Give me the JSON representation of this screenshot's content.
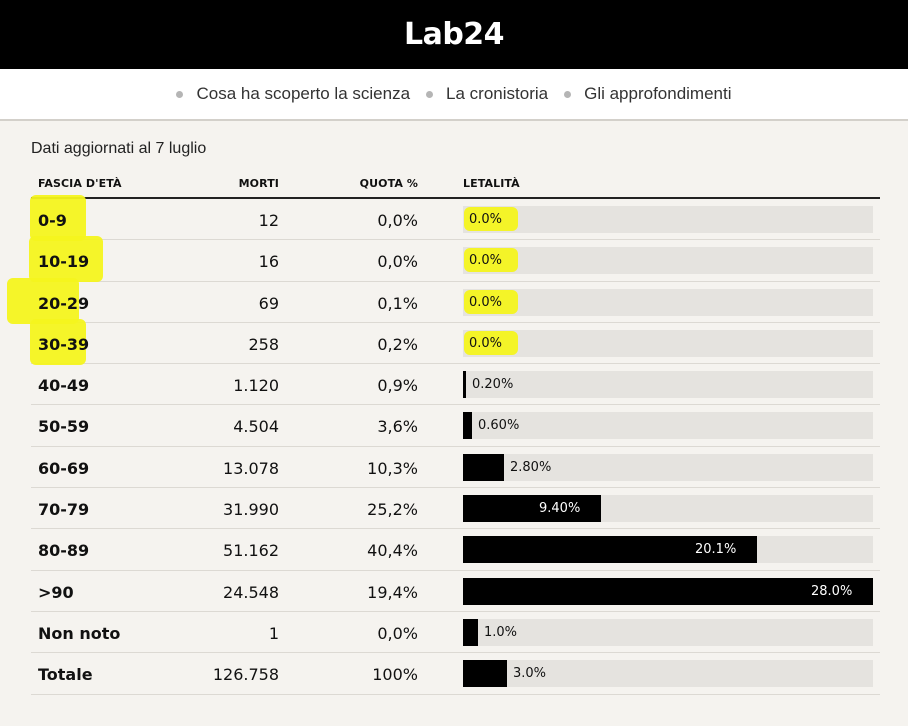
{
  "header": {
    "logo_text": "Lab24",
    "logo_icon": "lab24-logo"
  },
  "nav": {
    "items": [
      {
        "label": "Cosa ha scoperto la scienza"
      },
      {
        "label": "La cronistoria"
      },
      {
        "label": "Gli approfondimenti"
      }
    ]
  },
  "updated": "Dati aggiornati al 7 luglio",
  "table": {
    "headers": {
      "age": "FASCIA D'ETÀ",
      "deaths": "MORTI",
      "share": "QUOTA %",
      "lethality": "LETALITÀ"
    },
    "rows": [
      {
        "age": "0-9",
        "deaths": "12",
        "share": "0,0%",
        "lethality_label": "0.0%",
        "lethality": 0.0,
        "highlighted": true
      },
      {
        "age": "10-19",
        "deaths": "16",
        "share": "0,0%",
        "lethality_label": "0.0%",
        "lethality": 0.0,
        "highlighted": true
      },
      {
        "age": "20-29",
        "deaths": "69",
        "share": "0,1%",
        "lethality_label": "0.0%",
        "lethality": 0.0,
        "highlighted": true
      },
      {
        "age": "30-39",
        "deaths": "258",
        "share": "0,2%",
        "lethality_label": "0.0%",
        "lethality": 0.0,
        "highlighted": true
      },
      {
        "age": "40-49",
        "deaths": "1.120",
        "share": "0,9%",
        "lethality_label": "0.20%",
        "lethality": 0.2
      },
      {
        "age": "50-59",
        "deaths": "4.504",
        "share": "3,6%",
        "lethality_label": "0.60%",
        "lethality": 0.6
      },
      {
        "age": "60-69",
        "deaths": "13.078",
        "share": "10,3%",
        "lethality_label": "2.80%",
        "lethality": 2.8
      },
      {
        "age": "70-79",
        "deaths": "31.990",
        "share": "25,2%",
        "lethality_label": "9.40%",
        "lethality": 9.4
      },
      {
        "age": "80-89",
        "deaths": "51.162",
        "share": "40,4%",
        "lethality_label": "20.1%",
        "lethality": 20.1
      },
      {
        "age": ">90",
        "deaths": "24.548",
        "share": "19,4%",
        "lethality_label": "28.0%",
        "lethality": 28.0
      },
      {
        "age": "Non noto",
        "deaths": "1",
        "share": "0,0%",
        "lethality_label": "1.0%",
        "lethality": 1.0
      },
      {
        "age": "Totale",
        "deaths": "126.758",
        "share": "100%",
        "lethality_label": "3.0%",
        "lethality": 3.0
      }
    ],
    "lethality_max": 28.0
  },
  "colors": {
    "bar": "#000000",
    "track": "#e5e3df",
    "highlight": "#f4f41e"
  }
}
